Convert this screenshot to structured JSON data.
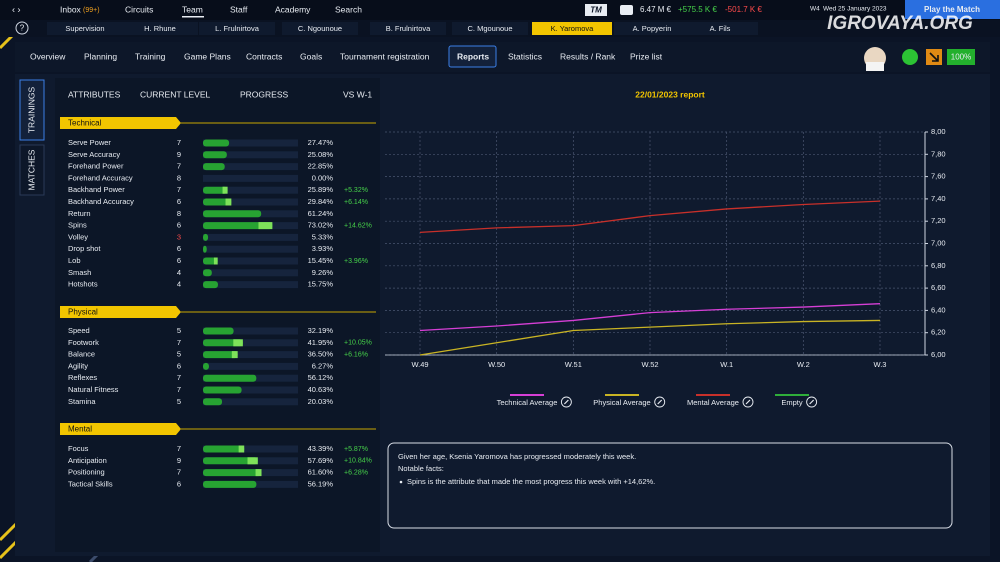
{
  "top_nav": {
    "items": [
      "Inbox",
      "Circuits",
      "Team",
      "Staff",
      "Academy",
      "Search"
    ],
    "inbox_badge": "(99+)"
  },
  "logo": "TM",
  "finance": {
    "balance": "6.47 M €",
    "income": "+575.5 K €",
    "expense": "-501.7 K €"
  },
  "week": "W4",
  "date": "Wed 25 January 2023",
  "play_button": "Play the Match",
  "watermark": "IGROVAYA.ORG",
  "player_tabs": [
    "Supervision",
    "H. Rhune",
    "L. Frulnirtova",
    "C. Ngounoue",
    "B. Frulnirtova",
    "C. Mgounoue",
    "K. Yaromova",
    "A. Popyerin",
    "A. Fils"
  ],
  "sub_nav": [
    "Overview",
    "Planning",
    "Training",
    "Game Plans",
    "Contracts",
    "Goals",
    "Tournament registration",
    "Reports",
    "Statistics",
    "Results / Rank",
    "Prize list"
  ],
  "morale": "100%",
  "side_tabs": [
    "TRAININGS",
    "MATCHES"
  ],
  "columns": [
    "ATTRIBUTES",
    "CURRENT LEVEL",
    "PROGRESS",
    "VS W-1"
  ],
  "sections": [
    {
      "title": "Technical",
      "attributes": [
        {
          "name": "Serve Power",
          "level": 7,
          "progress": 27.47,
          "progress_label": "27.47%"
        },
        {
          "name": "Serve Accuracy",
          "level": 9,
          "progress": 25.08,
          "progress_label": "25.08%"
        },
        {
          "name": "Forehand Power",
          "level": 7,
          "progress": 22.85,
          "progress_label": "22.85%"
        },
        {
          "name": "Forehand Accuracy",
          "level": 8,
          "progress": 0,
          "progress_label": "0.00%"
        },
        {
          "name": "Backhand Power",
          "level": 7,
          "progress": 25.89,
          "progress_label": "25.89%",
          "change": 5.32,
          "change_label": "+5.32%"
        },
        {
          "name": "Backhand Accuracy",
          "level": 6,
          "progress": 29.84,
          "progress_label": "29.84%",
          "change": 6.14,
          "change_label": "+6.14%"
        },
        {
          "name": "Return",
          "level": 8,
          "progress": 61.24,
          "progress_label": "61.24%"
        },
        {
          "name": "Spins",
          "level": 6,
          "progress": 73.02,
          "progress_label": "73.02%",
          "change": 14.62,
          "change_label": "+14.62%"
        },
        {
          "name": "Volley",
          "level": 3,
          "progress": 5.33,
          "progress_label": "5.33%"
        },
        {
          "name": "Drop shot",
          "level": 6,
          "progress": 3.93,
          "progress_label": "3.93%"
        },
        {
          "name": "Lob",
          "level": 6,
          "progress": 15.45,
          "progress_label": "15.45%",
          "change": 3.96,
          "change_label": "+3.96%"
        },
        {
          "name": "Smash",
          "level": 4,
          "progress": 9.26,
          "progress_label": "9.26%"
        },
        {
          "name": "Hotshots",
          "level": 4,
          "progress": 15.75,
          "progress_label": "15.75%"
        }
      ]
    },
    {
      "title": "Physical",
      "attributes": [
        {
          "name": "Speed",
          "level": 5,
          "progress": 32.19,
          "progress_label": "32.19%"
        },
        {
          "name": "Footwork",
          "level": 7,
          "progress": 41.95,
          "progress_label": "41.95%",
          "change": 10.05,
          "change_label": "+10.05%"
        },
        {
          "name": "Balance",
          "level": 5,
          "progress": 36.5,
          "progress_label": "36.50%",
          "change": 6.16,
          "change_label": "+6.16%"
        },
        {
          "name": "Agility",
          "level": 6,
          "progress": 6.27,
          "progress_label": "6.27%"
        },
        {
          "name": "Reflexes",
          "level": 7,
          "progress": 56.12,
          "progress_label": "56.12%"
        },
        {
          "name": "Natural Fitness",
          "level": 7,
          "progress": 40.63,
          "progress_label": "40.63%"
        },
        {
          "name": "Stamina",
          "level": 5,
          "progress": 20.03,
          "progress_label": "20.03%"
        }
      ]
    },
    {
      "title": "Mental",
      "attributes": [
        {
          "name": "Focus",
          "level": 7,
          "progress": 43.39,
          "progress_label": "43.39%",
          "change": 5.87,
          "change_label": "+5.87%"
        },
        {
          "name": "Anticipation",
          "level": 9,
          "progress": 57.69,
          "progress_label": "57.69%",
          "change": 10.84,
          "change_label": "+10.84%"
        },
        {
          "name": "Positioning",
          "level": 7,
          "progress": 61.6,
          "progress_label": "61.60%",
          "change": 6.28,
          "change_label": "+6.28%"
        },
        {
          "name": "Tactical Skills",
          "level": 6,
          "progress": 56.19,
          "progress_label": "56.19%"
        }
      ]
    }
  ],
  "chart_data": {
    "type": "line",
    "title": "22/01/2023 report",
    "categories": [
      "W.49",
      "W.50",
      "W.51",
      "W.52",
      "W.1",
      "W.2",
      "W.3"
    ],
    "series": [
      {
        "name": "Technical Average",
        "color": "#d63fd6",
        "values": [
          6.22,
          6.26,
          6.31,
          6.38,
          6.41,
          6.43,
          6.46
        ]
      },
      {
        "name": "Physical Average",
        "color": "#c9b424",
        "values": [
          6.0,
          6.11,
          6.22,
          6.25,
          6.28,
          6.3,
          6.31
        ]
      },
      {
        "name": "Mental Average",
        "color": "#c8302a",
        "values": [
          7.1,
          7.14,
          7.16,
          7.25,
          7.31,
          7.35,
          7.38
        ]
      },
      {
        "name": "Empty",
        "color": "#2fae3a",
        "values": [
          null,
          null,
          null,
          null,
          null,
          null,
          null
        ]
      }
    ],
    "ylim": [
      6.0,
      8.0
    ],
    "yticks": [
      {
        "value": 6.0,
        "label": "6,00"
      },
      {
        "value": 6.2,
        "label": "6,20"
      },
      {
        "value": 6.4,
        "label": "6,40"
      },
      {
        "value": 6.6,
        "label": "6,60"
      },
      {
        "value": 6.8,
        "label": "6,80"
      },
      {
        "value": 7.0,
        "label": "7,00"
      },
      {
        "value": 7.2,
        "label": "7,20"
      },
      {
        "value": 7.4,
        "label": "7,40"
      },
      {
        "value": 7.6,
        "label": "7,60"
      },
      {
        "value": 7.8,
        "label": "7,80"
      },
      {
        "value": 8.0,
        "label": "8,00"
      }
    ],
    "grid": true,
    "legend": "bottom"
  },
  "summary": {
    "text": "Given her age, Ksenia Yaromova has progressed moderately this week.",
    "notes_title": "Notable facts:",
    "notes": [
      "Spins is the attribute that made the most progress this week with +14,62%."
    ]
  }
}
